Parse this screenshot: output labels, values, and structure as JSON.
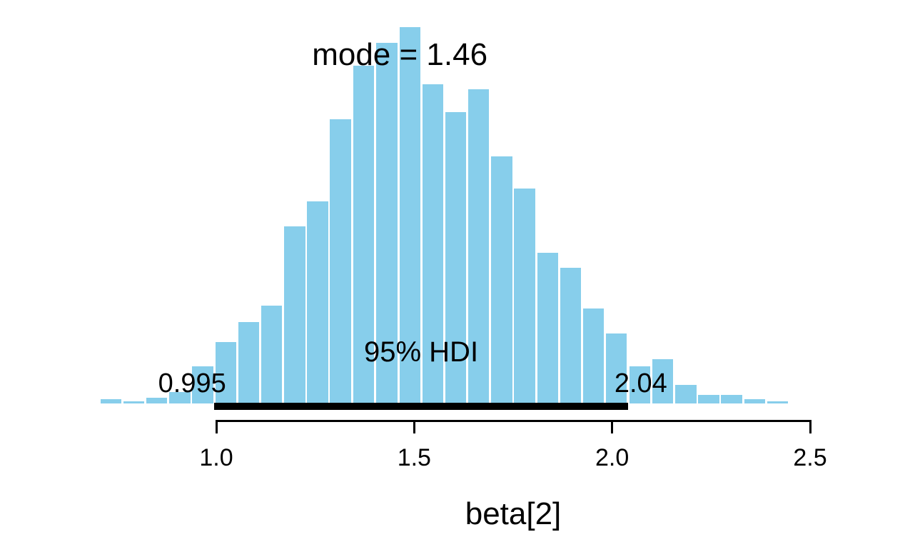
{
  "figure": {
    "background": "#ffffff",
    "annotations": {
      "mode_label": "mode = 1.46",
      "hdi_label": "95% HDI",
      "hdi_low_label": "0.995",
      "hdi_high_label": "2.04"
    },
    "x_axis": {
      "label": "beta[2]",
      "tick_labels": [
        "1.0",
        "1.5",
        "2.0",
        "2.5"
      ]
    },
    "colors": {
      "bar_fill": "#87CEEB",
      "hdi_line": "#000000",
      "axis": "#000000",
      "text": "#000000"
    }
  },
  "chart_data": {
    "type": "bar",
    "subtype": "histogram",
    "title": "",
    "xlabel": "beta[2]",
    "ylabel": "",
    "grid": false,
    "legend": false,
    "mode": 1.46,
    "hdi_mass": "95%",
    "hdi_interval": [
      0.995,
      2.04
    ],
    "x_ticks": [
      1.0,
      1.5,
      2.0,
      2.5
    ],
    "xlim": [
      0.7,
      2.55
    ],
    "bin_width": 0.05806,
    "bin_centers": [
      0.734,
      0.792,
      0.85,
      0.908,
      0.966,
      1.024,
      1.082,
      1.14,
      1.198,
      1.256,
      1.314,
      1.372,
      1.431,
      1.489,
      1.547,
      1.605,
      1.663,
      1.721,
      1.779,
      1.837,
      1.895,
      1.953,
      2.011,
      2.07,
      2.128,
      2.186,
      2.244,
      2.302,
      2.36,
      2.418
    ],
    "heights_rel": [
      0.011,
      0.006,
      0.015,
      0.03,
      0.099,
      0.163,
      0.216,
      0.26,
      0.471,
      0.537,
      0.755,
      0.897,
      0.958,
      1.0,
      0.848,
      0.774,
      0.835,
      0.656,
      0.571,
      0.4,
      0.36,
      0.252,
      0.186,
      0.099,
      0.118,
      0.049,
      0.023,
      0.023,
      0.011,
      0.005
    ]
  }
}
